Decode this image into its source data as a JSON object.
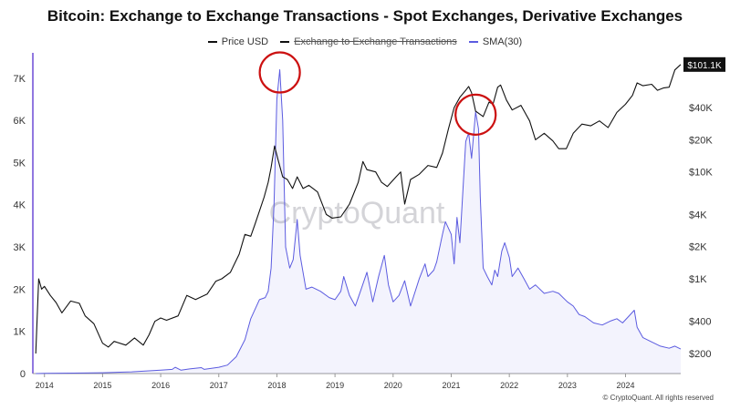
{
  "chart_data": {
    "type": "line",
    "title": "Bitcoin: Exchange to Exchange Transactions - Spot Exchanges, Derivative Exchanges",
    "legend": [
      {
        "name": "Price USD",
        "color": "#111111",
        "struck": false
      },
      {
        "name": "Exchange to Exchange Transactions",
        "color": "#111111",
        "struck": true
      },
      {
        "name": "SMA(30)",
        "color": "#5b5be0",
        "struck": false
      }
    ],
    "x_ticks": [
      "2014",
      "2015",
      "2016",
      "2017",
      "2018",
      "2019",
      "2020",
      "2021",
      "2022",
      "2023",
      "2024"
    ],
    "x_range": [
      2013.8,
      2024.95
    ],
    "y_left": {
      "ticks": [
        "0",
        "1K",
        "2K",
        "3K",
        "4K",
        "5K",
        "6K",
        "7K"
      ],
      "range": [
        0,
        7600
      ]
    },
    "y_right": {
      "scale": "log",
      "ticks": [
        "$200",
        "$400",
        "$1K",
        "$2K",
        "$4K",
        "$10K",
        "$20K",
        "$40K"
      ],
      "last_value_label": "$101.1K"
    },
    "series": [
      {
        "name": "SMA(30)",
        "axis": "left",
        "color": "#5b5be0",
        "points": [
          [
            2013.85,
            0
          ],
          [
            2014.0,
            5
          ],
          [
            2014.5,
            10
          ],
          [
            2015.0,
            20
          ],
          [
            2015.5,
            40
          ],
          [
            2016.0,
            80
          ],
          [
            2016.2,
            100
          ],
          [
            2016.25,
            150
          ],
          [
            2016.35,
            80
          ],
          [
            2016.5,
            110
          ],
          [
            2016.7,
            140
          ],
          [
            2016.75,
            100
          ],
          [
            2017.0,
            150
          ],
          [
            2017.15,
            200
          ],
          [
            2017.3,
            400
          ],
          [
            2017.45,
            800
          ],
          [
            2017.55,
            1300
          ],
          [
            2017.7,
            1750
          ],
          [
            2017.8,
            1800
          ],
          [
            2017.85,
            1950
          ],
          [
            2017.9,
            2500
          ],
          [
            2017.95,
            4000
          ],
          [
            2018.0,
            6500
          ],
          [
            2018.05,
            7200
          ],
          [
            2018.1,
            6000
          ],
          [
            2018.15,
            3000
          ],
          [
            2018.22,
            2500
          ],
          [
            2018.28,
            2700
          ],
          [
            2018.35,
            3650
          ],
          [
            2018.4,
            2800
          ],
          [
            2018.5,
            2000
          ],
          [
            2018.6,
            2050
          ],
          [
            2018.75,
            1950
          ],
          [
            2018.9,
            1800
          ],
          [
            2019.0,
            1750
          ],
          [
            2019.1,
            1950
          ],
          [
            2019.15,
            2300
          ],
          [
            2019.25,
            1850
          ],
          [
            2019.35,
            1600
          ],
          [
            2019.45,
            2000
          ],
          [
            2019.55,
            2400
          ],
          [
            2019.65,
            1700
          ],
          [
            2019.75,
            2300
          ],
          [
            2019.85,
            2800
          ],
          [
            2019.92,
            2100
          ],
          [
            2020.0,
            1700
          ],
          [
            2020.1,
            1850
          ],
          [
            2020.2,
            2200
          ],
          [
            2020.3,
            1600
          ],
          [
            2020.45,
            2250
          ],
          [
            2020.55,
            2600
          ],
          [
            2020.6,
            2300
          ],
          [
            2020.7,
            2450
          ],
          [
            2020.75,
            2650
          ],
          [
            2020.85,
            3300
          ],
          [
            2020.9,
            3600
          ],
          [
            2020.95,
            3450
          ],
          [
            2021.0,
            3300
          ],
          [
            2021.05,
            2600
          ],
          [
            2021.1,
            3700
          ],
          [
            2021.15,
            3100
          ],
          [
            2021.2,
            4300
          ],
          [
            2021.25,
            5500
          ],
          [
            2021.3,
            5700
          ],
          [
            2021.35,
            5100
          ],
          [
            2021.42,
            6200
          ],
          [
            2021.47,
            5800
          ],
          [
            2021.5,
            4200
          ],
          [
            2021.55,
            2500
          ],
          [
            2021.62,
            2300
          ],
          [
            2021.7,
            2100
          ],
          [
            2021.75,
            2450
          ],
          [
            2021.8,
            2300
          ],
          [
            2021.87,
            2900
          ],
          [
            2021.92,
            3100
          ],
          [
            2022.0,
            2750
          ],
          [
            2022.05,
            2300
          ],
          [
            2022.15,
            2500
          ],
          [
            2022.25,
            2250
          ],
          [
            2022.35,
            2000
          ],
          [
            2022.45,
            2100
          ],
          [
            2022.6,
            1900
          ],
          [
            2022.75,
            1950
          ],
          [
            2022.85,
            1900
          ],
          [
            2023.0,
            1700
          ],
          [
            2023.1,
            1600
          ],
          [
            2023.2,
            1400
          ],
          [
            2023.3,
            1350
          ],
          [
            2023.45,
            1200
          ],
          [
            2023.6,
            1150
          ],
          [
            2023.75,
            1250
          ],
          [
            2023.85,
            1300
          ],
          [
            2023.95,
            1200
          ],
          [
            2024.05,
            1350
          ],
          [
            2024.15,
            1500
          ],
          [
            2024.2,
            1100
          ],
          [
            2024.3,
            850
          ],
          [
            2024.45,
            750
          ],
          [
            2024.6,
            650
          ],
          [
            2024.75,
            600
          ],
          [
            2024.85,
            650
          ],
          [
            2024.95,
            580
          ]
        ]
      },
      {
        "name": "Price USD",
        "axis": "right",
        "color": "#111111",
        "points": [
          [
            2013.85,
            200
          ],
          [
            2013.9,
            1000
          ],
          [
            2013.95,
            800
          ],
          [
            2014.0,
            850
          ],
          [
            2014.1,
            700
          ],
          [
            2014.2,
            600
          ],
          [
            2014.3,
            480
          ],
          [
            2014.45,
            620
          ],
          [
            2014.6,
            590
          ],
          [
            2014.7,
            450
          ],
          [
            2014.85,
            380
          ],
          [
            2015.0,
            250
          ],
          [
            2015.1,
            230
          ],
          [
            2015.2,
            260
          ],
          [
            2015.4,
            240
          ],
          [
            2015.55,
            280
          ],
          [
            2015.7,
            240
          ],
          [
            2015.8,
            300
          ],
          [
            2015.9,
            400
          ],
          [
            2016.0,
            430
          ],
          [
            2016.1,
            410
          ],
          [
            2016.3,
            450
          ],
          [
            2016.45,
            700
          ],
          [
            2016.6,
            640
          ],
          [
            2016.8,
            720
          ],
          [
            2016.95,
            950
          ],
          [
            2017.05,
            1000
          ],
          [
            2017.2,
            1150
          ],
          [
            2017.35,
            1700
          ],
          [
            2017.45,
            2600
          ],
          [
            2017.55,
            2500
          ],
          [
            2017.62,
            3200
          ],
          [
            2017.7,
            4300
          ],
          [
            2017.78,
            5800
          ],
          [
            2017.85,
            8000
          ],
          [
            2017.9,
            11000
          ],
          [
            2017.96,
            17500
          ],
          [
            2018.02,
            13000
          ],
          [
            2018.1,
            9000
          ],
          [
            2018.18,
            8500
          ],
          [
            2018.27,
            7000
          ],
          [
            2018.35,
            9000
          ],
          [
            2018.45,
            7000
          ],
          [
            2018.55,
            7500
          ],
          [
            2018.7,
            6500
          ],
          [
            2018.85,
            4000
          ],
          [
            2018.95,
            3700
          ],
          [
            2019.1,
            3800
          ],
          [
            2019.25,
            5000
          ],
          [
            2019.4,
            8000
          ],
          [
            2019.48,
            12500
          ],
          [
            2019.55,
            10500
          ],
          [
            2019.7,
            10000
          ],
          [
            2019.8,
            8000
          ],
          [
            2019.9,
            7300
          ],
          [
            2020.05,
            9000
          ],
          [
            2020.13,
            10000
          ],
          [
            2020.2,
            5000
          ],
          [
            2020.3,
            8500
          ],
          [
            2020.45,
            9500
          ],
          [
            2020.6,
            11500
          ],
          [
            2020.75,
            11000
          ],
          [
            2020.85,
            15000
          ],
          [
            2020.95,
            25000
          ],
          [
            2021.05,
            40000
          ],
          [
            2021.15,
            50000
          ],
          [
            2021.25,
            58000
          ],
          [
            2021.3,
            63000
          ],
          [
            2021.35,
            55000
          ],
          [
            2021.42,
            37000
          ],
          [
            2021.55,
            33000
          ],
          [
            2021.65,
            45000
          ],
          [
            2021.72,
            43000
          ],
          [
            2021.8,
            62000
          ],
          [
            2021.85,
            65000
          ],
          [
            2021.95,
            47000
          ],
          [
            2022.05,
            38000
          ],
          [
            2022.2,
            42000
          ],
          [
            2022.35,
            30000
          ],
          [
            2022.45,
            20000
          ],
          [
            2022.6,
            23000
          ],
          [
            2022.75,
            19500
          ],
          [
            2022.85,
            16500
          ],
          [
            2022.98,
            16500
          ],
          [
            2023.1,
            23000
          ],
          [
            2023.25,
            28000
          ],
          [
            2023.4,
            27000
          ],
          [
            2023.55,
            30000
          ],
          [
            2023.7,
            26000
          ],
          [
            2023.85,
            36000
          ],
          [
            2024.0,
            43000
          ],
          [
            2024.12,
            52000
          ],
          [
            2024.2,
            68000
          ],
          [
            2024.3,
            64000
          ],
          [
            2024.45,
            66000
          ],
          [
            2024.55,
            58000
          ],
          [
            2024.65,
            61000
          ],
          [
            2024.75,
            62000
          ],
          [
            2024.85,
            90000
          ],
          [
            2024.95,
            101100
          ]
        ]
      }
    ],
    "annotations": [
      {
        "type": "circle",
        "at": [
          2018.05,
          7200
        ],
        "axis": "left",
        "color": "#cc1111"
      },
      {
        "type": "circle",
        "at": [
          2021.42,
          6200
        ],
        "axis": "left",
        "color": "#cc1111"
      }
    ],
    "watermark": "CryptoQuant",
    "grid": false
  },
  "copyright": "© CryptoQuant. All rights reserved"
}
